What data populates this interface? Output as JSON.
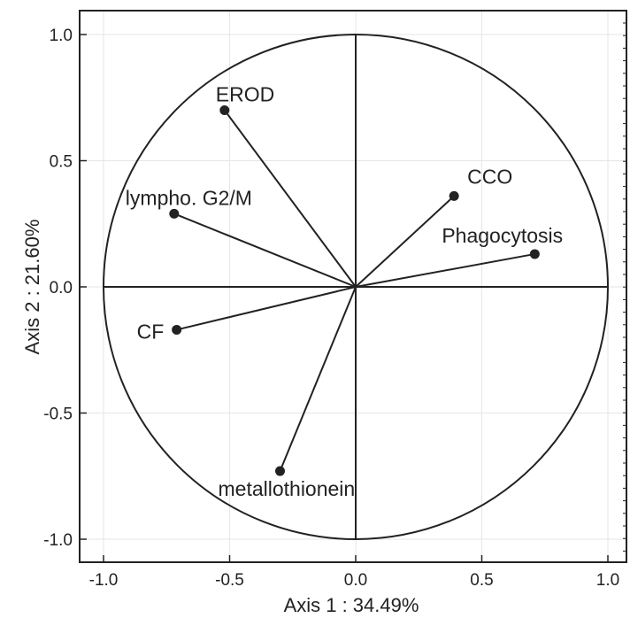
{
  "chart_data": {
    "type": "scatter",
    "subtype": "correlation-circle",
    "title": "",
    "xlabel": "Axis 1  : 34.49%",
    "ylabel": "Axis 2  : 21.60%",
    "xlim": [
      -1.0,
      1.0
    ],
    "ylim": [
      -1.0,
      1.0
    ],
    "xticks": [
      "-1.0",
      "-0.5",
      "0.0",
      "0.5",
      "1.0"
    ],
    "yticks": [
      "1.0",
      "0.5",
      "0.0",
      "-0.5",
      "-1.0"
    ],
    "grid": true,
    "unit_circle": true,
    "points": [
      {
        "label": "EROD",
        "x": -0.52,
        "y": 0.7
      },
      {
        "label": "lympho. G2/M",
        "x": -0.72,
        "y": 0.29
      },
      {
        "label": "CCO",
        "x": 0.39,
        "y": 0.36
      },
      {
        "label": "Phagocytosis",
        "x": 0.71,
        "y": 0.13
      },
      {
        "label": "CF",
        "x": -0.71,
        "y": -0.17
      },
      {
        "label": "metallothionein",
        "x": -0.3,
        "y": -0.73
      }
    ]
  },
  "colors": {
    "ink": "#222222",
    "grid": "#e6e6e6",
    "background": "#ffffff"
  }
}
